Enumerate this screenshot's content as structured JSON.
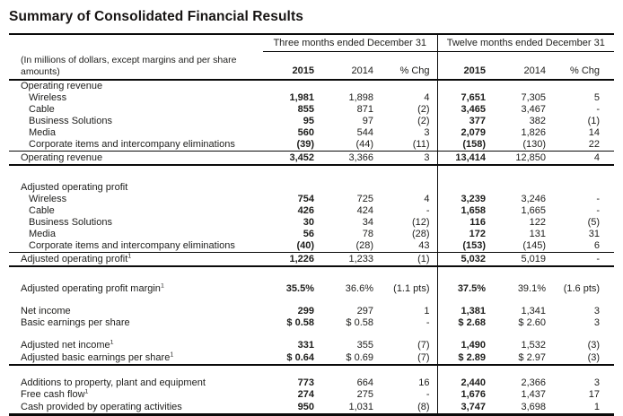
{
  "title": "Summary of Consolidated Financial Results",
  "table": {
    "note_lines": [
      "(In millions of dollars, except margins and per share",
      "amounts)"
    ],
    "groups": [
      {
        "label": "Three months ended December 31"
      },
      {
        "label": "Twelve months ended December 31"
      }
    ],
    "columns": [
      "2015",
      "2014",
      "% Chg",
      "2015",
      "2014",
      "% Chg"
    ],
    "rows": [
      {
        "type": "section",
        "label": "Operating revenue"
      },
      {
        "type": "item",
        "indent": true,
        "label": "Wireless",
        "values": [
          "1,981",
          "1,898",
          "4",
          "7,651",
          "7,305",
          "5"
        ]
      },
      {
        "type": "item",
        "indent": true,
        "label": "Cable",
        "values": [
          "855",
          "871",
          "(2)",
          "3,465",
          "3,467",
          "-"
        ]
      },
      {
        "type": "item",
        "indent": true,
        "label": "Business Solutions",
        "values": [
          "95",
          "97",
          "(2)",
          "377",
          "382",
          "(1)"
        ]
      },
      {
        "type": "item",
        "indent": true,
        "label": "Media",
        "values": [
          "560",
          "544",
          "3",
          "2,079",
          "1,826",
          "14"
        ]
      },
      {
        "type": "item",
        "indent": true,
        "label": "Corporate items and intercompany eliminations",
        "values": [
          "(39)",
          "(44)",
          "(11)",
          "(158)",
          "(130)",
          "22"
        ]
      },
      {
        "type": "total",
        "label": "Operating revenue",
        "values": [
          "3,452",
          "3,366",
          "3",
          "13,414",
          "12,850",
          "4"
        ]
      },
      {
        "type": "gap",
        "size": 18
      },
      {
        "type": "section",
        "label": "Adjusted operating profit"
      },
      {
        "type": "item",
        "indent": true,
        "label": "Wireless",
        "values": [
          "754",
          "725",
          "4",
          "3,239",
          "3,246",
          "-"
        ]
      },
      {
        "type": "item",
        "indent": true,
        "label": "Cable",
        "values": [
          "426",
          "424",
          "-",
          "1,658",
          "1,665",
          "-"
        ]
      },
      {
        "type": "item",
        "indent": true,
        "label": "Business Solutions",
        "values": [
          "30",
          "34",
          "(12)",
          "116",
          "122",
          "(5)"
        ]
      },
      {
        "type": "item",
        "indent": true,
        "label": "Media",
        "values": [
          "56",
          "78",
          "(28)",
          "172",
          "131",
          "31"
        ]
      },
      {
        "type": "item",
        "indent": true,
        "label": "Corporate items and intercompany eliminations",
        "values": [
          "(40)",
          "(28)",
          "43",
          "(153)",
          "(145)",
          "6"
        ]
      },
      {
        "type": "total",
        "label": "Adjusted operating profit",
        "sup": "1",
        "values": [
          "1,226",
          "1,233",
          "(1)",
          "5,032",
          "5,019",
          "-"
        ]
      },
      {
        "type": "gap",
        "size": 18
      },
      {
        "type": "row",
        "label": "Adjusted operating profit margin",
        "sup": "1",
        "values": [
          "35.5%",
          "36.6%",
          "(1.1 pts)",
          "37.5%",
          "39.1%",
          "(1.6 pts)"
        ]
      },
      {
        "type": "gap",
        "size": 12
      },
      {
        "type": "row",
        "label": "Net income",
        "values": [
          "299",
          "297",
          "1",
          "1,381",
          "1,341",
          "3"
        ]
      },
      {
        "type": "row",
        "label": "Basic earnings per share",
        "values": [
          "$ 0.58",
          "$ 0.58",
          "-",
          "$ 2.68",
          "$ 2.60",
          "3"
        ]
      },
      {
        "type": "gap",
        "size": 12
      },
      {
        "type": "row",
        "label": "Adjusted net income",
        "sup": "1",
        "values": [
          "331",
          "355",
          "(7)",
          "1,490",
          "1,532",
          "(3)"
        ]
      },
      {
        "type": "row",
        "cls": "rule-below",
        "label": "Adjusted basic earnings per share",
        "sup": "1",
        "values": [
          "$ 0.64",
          "$ 0.69",
          "(7)",
          "$ 2.89",
          "$ 2.97",
          "(3)"
        ]
      },
      {
        "type": "gap",
        "size": 13
      },
      {
        "type": "row",
        "label": "Additions to property, plant and equipment",
        "values": [
          "773",
          "664",
          "16",
          "2,440",
          "2,366",
          "3"
        ]
      },
      {
        "type": "row",
        "label": "Free cash flow",
        "sup": "1",
        "values": [
          "274",
          "275",
          "-",
          "1,676",
          "1,437",
          "17"
        ]
      },
      {
        "type": "row",
        "cls": "last",
        "label": "Cash provided by operating activities",
        "values": [
          "950",
          "1,031",
          "(8)",
          "3,747",
          "3,698",
          "1"
        ]
      }
    ]
  }
}
